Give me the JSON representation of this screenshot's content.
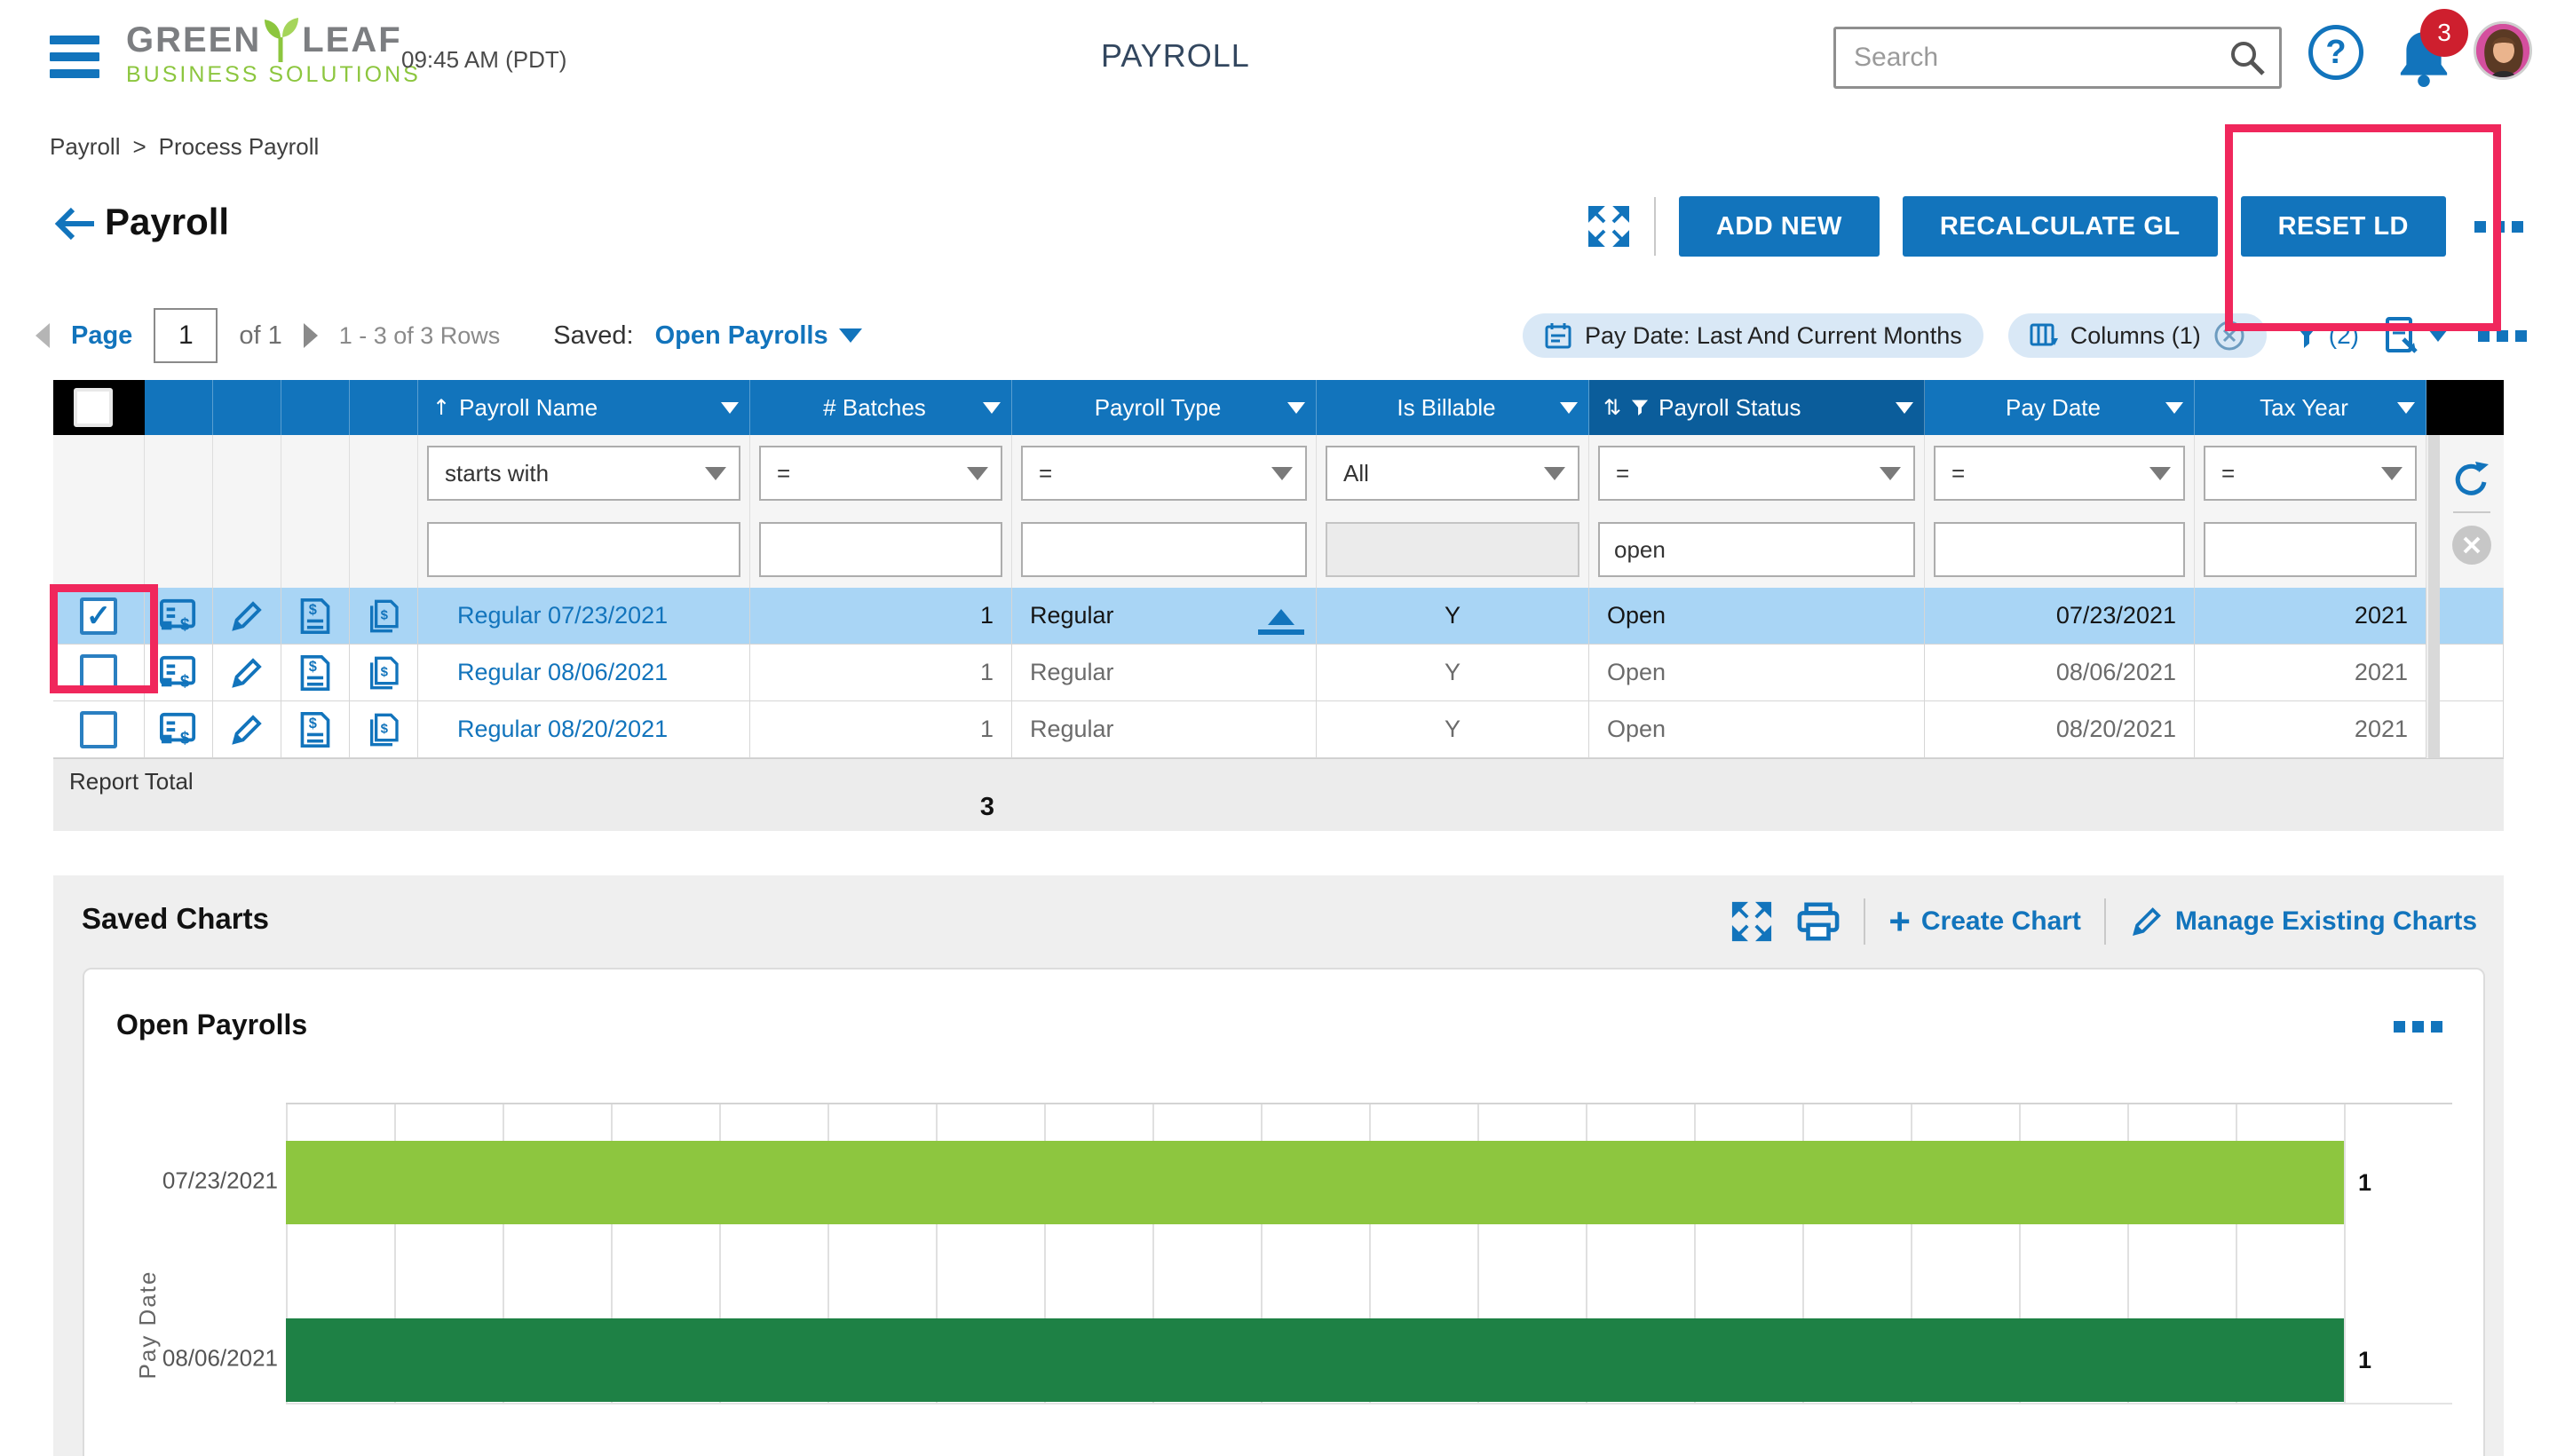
{
  "header": {
    "logo_word1": "GREEN",
    "logo_word2": "LEAF",
    "logo_line2": "BUSINESS SOLUTIONS",
    "time": "09:45 AM (PDT)",
    "app_title": "PAYROLL",
    "search_placeholder": "Search",
    "notification_count": "3"
  },
  "breadcrumb": {
    "item1": "Payroll",
    "separator": ">",
    "item2": "Process Payroll"
  },
  "page_header": {
    "title": "Payroll",
    "buttons": [
      "ADD NEW",
      "RECALCULATE GL",
      "RESET LD"
    ]
  },
  "pagination": {
    "page_label": "Page",
    "page_value": "1",
    "of_label": "of 1",
    "range_label": "1 - 3 of 3 Rows",
    "saved_label": "Saved:",
    "saved_view": "Open Payrolls"
  },
  "toolbar": {
    "pay_date_chip": "Pay Date: Last And Current Months",
    "columns_chip": "Columns (1)",
    "filter_count": "(2)"
  },
  "table": {
    "columns": [
      "Payroll Name",
      "# Batches",
      "Payroll Type",
      "Is Billable",
      "Payroll Status",
      "Pay Date",
      "Tax Year"
    ],
    "operators": [
      "starts with",
      "=",
      "=",
      "All",
      "=",
      "=",
      "="
    ],
    "status_filter_value": "open",
    "rows": [
      {
        "selected": true,
        "name": "Regular 07/23/2021",
        "batches": "1",
        "type": "Regular",
        "billable": "Y",
        "status": "Open",
        "pay_date": "07/23/2021",
        "tax_year": "2021"
      },
      {
        "selected": false,
        "name": "Regular 08/06/2021",
        "batches": "1",
        "type": "Regular",
        "billable": "Y",
        "status": "Open",
        "pay_date": "08/06/2021",
        "tax_year": "2021"
      },
      {
        "selected": false,
        "name": "Regular 08/20/2021",
        "batches": "1",
        "type": "Regular",
        "billable": "Y",
        "status": "Open",
        "pay_date": "08/20/2021",
        "tax_year": "2021"
      }
    ],
    "report_total_label": "Report Total",
    "report_total_value": "3"
  },
  "charts": {
    "section_title": "Saved Charts",
    "create_chart": "Create Chart",
    "manage_charts": "Manage Existing Charts",
    "card_title": "Open Payrolls"
  },
  "chart_data": {
    "type": "bar",
    "orientation": "horizontal",
    "title": "Open Payrolls",
    "ylabel": "Pay Date",
    "xlabel": "",
    "categories": [
      "07/23/2021",
      "08/06/2021"
    ],
    "values": [
      1,
      1
    ],
    "bar_colors": [
      "#8dc63f",
      "#1e8145"
    ],
    "xlim": [
      0,
      1
    ],
    "grid": true,
    "legend": "none"
  },
  "colors": {
    "primary_blue": "#1274bc",
    "sorted_header_blue": "#0b5d9b",
    "row_highlight_blue": "#a9d5f5",
    "chip_blue": "#d9e8f6",
    "annotation_red": "#f0275c",
    "badge_red": "#ce1f2e",
    "logo_green": "#8cc63e",
    "bar_green_light": "#8dc63f",
    "bar_green_dark": "#1e8145"
  },
  "icons": [
    "menu-icon",
    "search-icon",
    "help-icon",
    "bell-icon",
    "avatar",
    "back-arrow-icon",
    "expand-icon",
    "more-ellipsis-icon",
    "calendar-icon",
    "columns-icon",
    "remove-circle-icon",
    "filter-funnel-icon",
    "export-icon",
    "refresh-icon",
    "clear-circle-icon",
    "edit-pencil-icon",
    "process-payroll-icon",
    "pay-statement-icon",
    "copy-statement-icon",
    "print-icon",
    "plus-icon",
    "sort-asc-icon",
    "sort-filter-icon",
    "collapse-arrow-icon"
  ]
}
